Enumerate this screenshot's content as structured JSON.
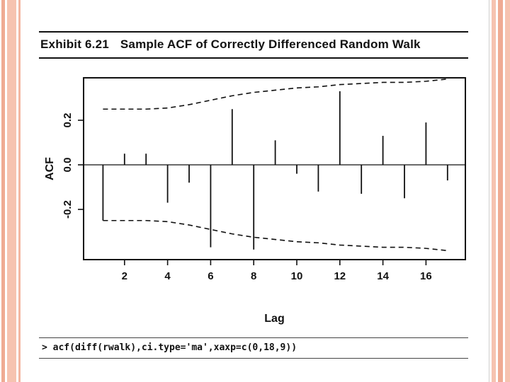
{
  "slide": {
    "exhibit_label": "Exhibit 6.21",
    "exhibit_title": "Sample ACF of Correctly Differenced Random Walk",
    "code_line": "> acf(diff(rwalk),ci.type='ma',xaxp=c(0,18,9))"
  },
  "colors": {
    "stripe_light": "#f6c3b0",
    "stripe_dark": "#efab93",
    "ink": "#111111"
  },
  "chart_data": {
    "type": "bar",
    "title": "Sample ACF of Correctly Differenced Random Walk",
    "xlabel": "Lag",
    "ylabel": "ACF",
    "x": [
      1,
      2,
      3,
      4,
      5,
      6,
      7,
      8,
      9,
      10,
      11,
      12,
      13,
      14,
      15,
      16,
      17
    ],
    "values": [
      -0.25,
      0.05,
      0.05,
      -0.17,
      -0.08,
      -0.37,
      0.25,
      -0.38,
      0.11,
      -0.04,
      -0.12,
      0.33,
      -0.13,
      0.13,
      -0.15,
      0.19,
      -0.07
    ],
    "conf_band_upper": [
      0.25,
      0.25,
      0.25,
      0.255,
      0.27,
      0.29,
      0.31,
      0.325,
      0.335,
      0.345,
      0.35,
      0.36,
      0.365,
      0.37,
      0.37,
      0.375,
      0.385
    ],
    "conf_band_lower": [
      -0.25,
      -0.25,
      -0.25,
      -0.255,
      -0.27,
      -0.29,
      -0.31,
      -0.325,
      -0.335,
      -0.345,
      -0.35,
      -0.36,
      -0.365,
      -0.37,
      -0.37,
      -0.375,
      -0.385
    ],
    "ci_type": "ma",
    "xticks": [
      2,
      4,
      6,
      8,
      10,
      12,
      14,
      16
    ],
    "yticks": [
      0.2,
      0.0,
      -0.2
    ],
    "ytick_labels": [
      "0.2",
      "0.0",
      "-0.2"
    ],
    "xlim": [
      0,
      18
    ],
    "ylim": [
      -0.43,
      0.4
    ],
    "grid": false,
    "legend": "none"
  }
}
